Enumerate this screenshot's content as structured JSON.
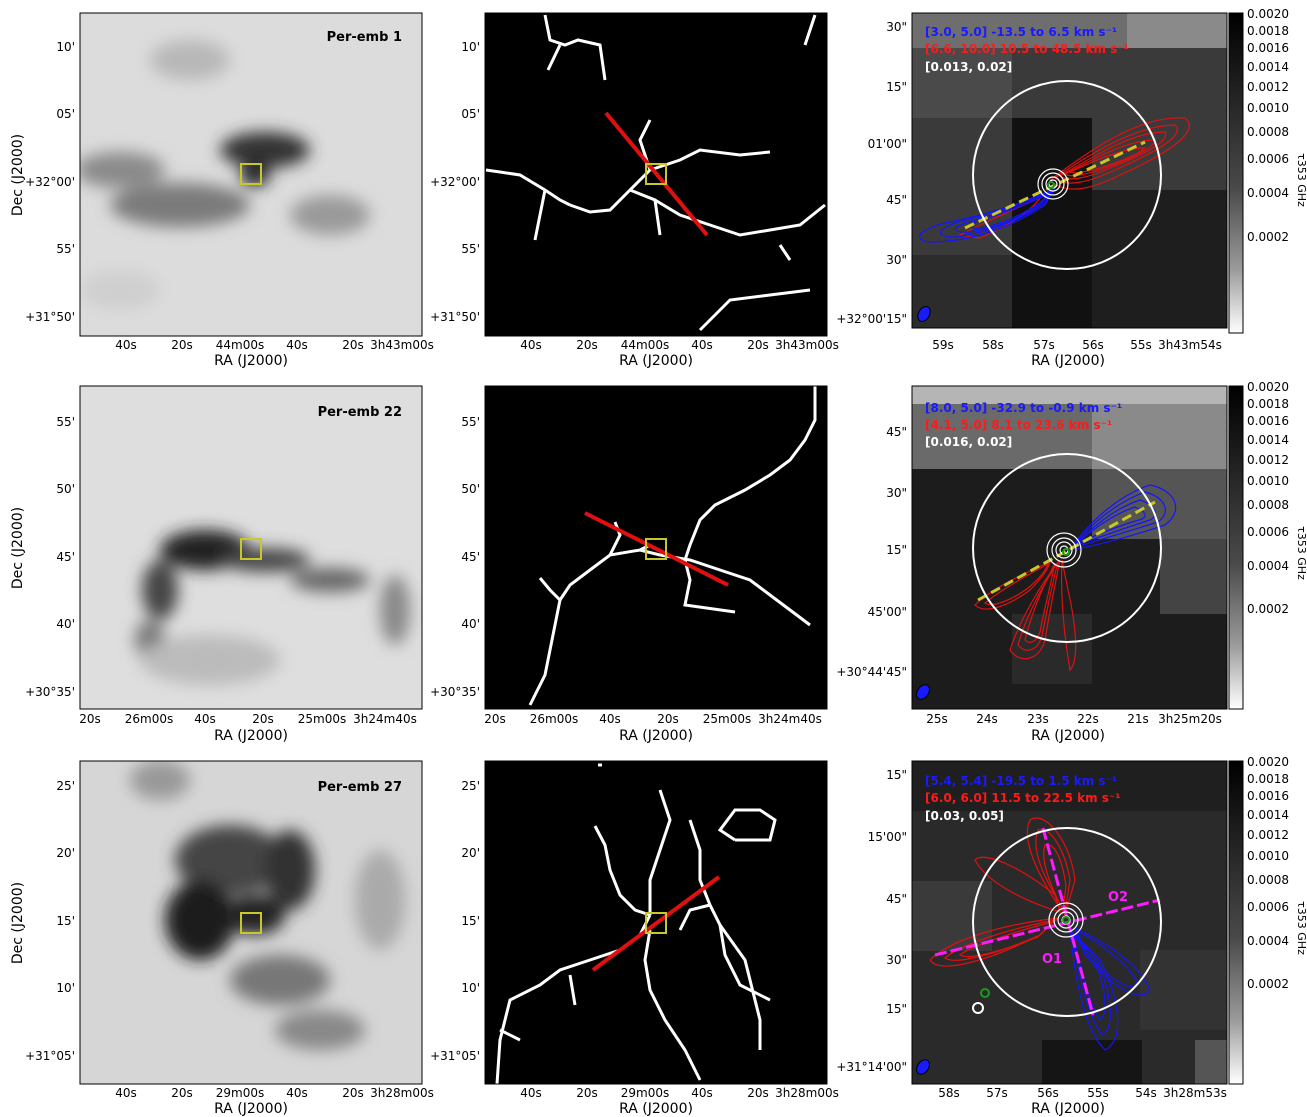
{
  "colorbar": {
    "label": "τ353 GHz",
    "ticks": [
      "0.0020",
      "0.0018",
      "0.0016",
      "0.0014",
      "0.0012",
      "0.0010",
      "0.0008",
      "0.0006",
      "0.0004",
      "0.0002"
    ],
    "tick_values": [
      0.002,
      0.0018,
      0.0016,
      0.0014,
      0.0012,
      0.001,
      0.0008,
      0.0006,
      0.0004,
      0.0002
    ]
  },
  "axes": {
    "ra_label": "RA (J2000)",
    "dec_label": "Dec (J2000)"
  },
  "rows": [
    {
      "name": "Per-emb 1",
      "tau_ra_ticks": [
        "40s",
        "20s",
        "44m00s",
        "40s",
        "20s",
        "3h43m00s"
      ],
      "tau_dec_ticks": [
        "10'",
        "05'",
        "+32°00'",
        "55'",
        "+31°50'"
      ],
      "zoom_ra_ticks": [
        "59s",
        "58s",
        "57s",
        "56s",
        "55s",
        "3h43m54s"
      ],
      "zoom_dec_ticks": [
        "30\"",
        "15\"",
        "01'00\"",
        "45\"",
        "30\"",
        "+32°00'15\""
      ],
      "legend": [
        {
          "text": "[3.0, 5.0] -13.5 to 6.5 km s⁻¹",
          "color": "#1a1aff"
        },
        {
          "text": "[6.6, 10.0] 10.5 to 48.5 km s⁻¹",
          "color": "#ff1a1a"
        },
        {
          "text": "[0.013, 0.02]",
          "color": "#ffffff"
        }
      ]
    },
    {
      "name": "Per-emb 22",
      "tau_ra_ticks": [
        "20s",
        "26m00s",
        "40s",
        "20s",
        "25m00s",
        "3h24m40s"
      ],
      "tau_dec_ticks": [
        "55'",
        "50'",
        "45'",
        "40'",
        "+30°35'"
      ],
      "zoom_ra_ticks": [
        "25s",
        "24s",
        "23s",
        "22s",
        "21s",
        "3h25m20s"
      ],
      "zoom_dec_ticks": [
        "45\"",
        "30\"",
        "15\"",
        "45'00\"",
        "+30°44'45\""
      ],
      "legend": [
        {
          "text": "[8.0, 5.0] -32.9 to -0.9 km s⁻¹",
          "color": "#1a1aff"
        },
        {
          "text": "[4.1, 5.0] 8.1 to 23.6 km s⁻¹",
          "color": "#ff1a1a"
        },
        {
          "text": "[0.016, 0.02]",
          "color": "#ffffff"
        }
      ]
    },
    {
      "name": "Per-emb 27",
      "tau_ra_ticks": [
        "40s",
        "20s",
        "29m00s",
        "40s",
        "20s",
        "3h28m00s"
      ],
      "tau_dec_ticks": [
        "25'",
        "20'",
        "15'",
        "10'",
        "+31°05'"
      ],
      "zoom_ra_ticks": [
        "58s",
        "57s",
        "56s",
        "55s",
        "54s",
        "3h28m53s"
      ],
      "zoom_dec_ticks": [
        "15\"",
        "15'00\"",
        "45\"",
        "30\"",
        "15\"",
        "+31°14'00\""
      ],
      "legend": [
        {
          "text": "[5.4, 5.4] -19.5 to 1.5 km s⁻¹",
          "color": "#1a1aff"
        },
        {
          "text": "[6.0, 6.0] 11.5 to 22.5 km s⁻¹",
          "color": "#ff1a1a"
        },
        {
          "text": "[0.03, 0.05]",
          "color": "#ffffff"
        }
      ],
      "outflow_labels": [
        "O1",
        "O2"
      ]
    }
  ]
}
